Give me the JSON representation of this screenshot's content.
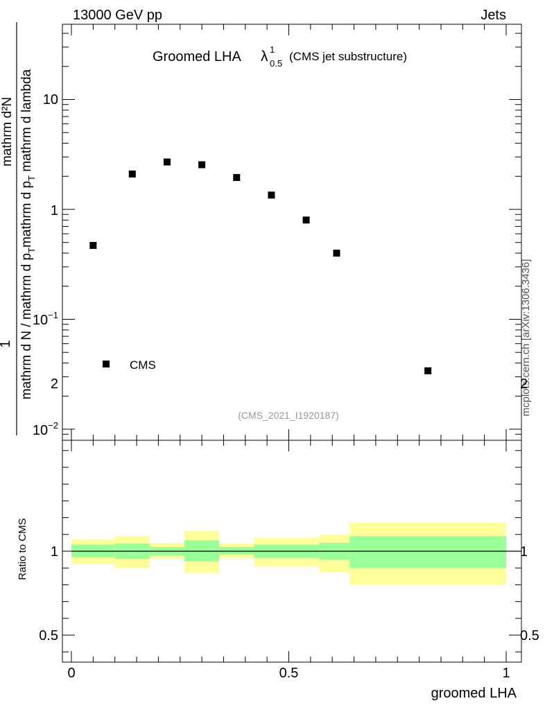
{
  "header": {
    "left": "13000 GeV pp",
    "right": "Jets"
  },
  "side_label": "mcplots.cern.ch [arXiv:1306.3436]",
  "watermark": "(CMS_2021_I1920187)",
  "title": {
    "main": "Groomed LHA",
    "symbol": "λ",
    "sup": "1",
    "sub": "0.5",
    "extra": "(CMS jet substructure)"
  },
  "legend": {
    "label": "CMS"
  },
  "colors": {
    "inner_band": "#99ff99",
    "outer_band": "#ffff99",
    "marker": "#000000"
  },
  "chart_data": [
    {
      "type": "scatter",
      "yscale": "log",
      "ylabel": "1 / mathrm d N / mathrm d p_T mathrm d p_T mathrm d^2N / mathrm d p_T mathrm d lambda",
      "ylim": [
        0.008,
        50
      ],
      "xlim": [
        -0.02,
        1.02
      ],
      "ytick_labels": [
        "10^-2",
        "10^-1",
        "1",
        "10"
      ],
      "series": [
        {
          "name": "CMS",
          "x": [
            0.05,
            0.14,
            0.22,
            0.3,
            0.38,
            0.46,
            0.54,
            0.61,
            0.82
          ],
          "y": [
            0.47,
            2.1,
            2.7,
            2.55,
            1.95,
            1.35,
            0.8,
            0.4,
            0.034
          ]
        }
      ]
    },
    {
      "type": "area",
      "ylabel": "Ratio to CMS",
      "xlabel": "groomed LHA",
      "ylim": [
        0.35,
        2.25
      ],
      "xlim": [
        -0.02,
        1.02
      ],
      "ytick_labels": [
        "0.5",
        "1",
        "2"
      ],
      "xtick_labels": [
        "0",
        "0.5",
        "1"
      ],
      "bins": [
        {
          "lo": 0.0,
          "hi": 0.1,
          "inner": [
            0.965,
            1.04
          ],
          "outer": [
            0.925,
            1.07
          ]
        },
        {
          "lo": 0.1,
          "hi": 0.18,
          "inner": [
            0.955,
            1.045
          ],
          "outer": [
            0.9,
            1.09
          ]
        },
        {
          "lo": 0.18,
          "hi": 0.26,
          "inner": [
            0.975,
            1.025
          ],
          "outer": [
            0.955,
            1.05
          ]
        },
        {
          "lo": 0.26,
          "hi": 0.34,
          "inner": [
            0.94,
            1.065
          ],
          "outer": [
            0.87,
            1.12
          ]
        },
        {
          "lo": 0.34,
          "hi": 0.42,
          "inner": [
            0.98,
            1.025
          ],
          "outer": [
            0.96,
            1.045
          ]
        },
        {
          "lo": 0.42,
          "hi": 0.5,
          "inner": [
            0.96,
            1.04
          ],
          "outer": [
            0.91,
            1.08
          ]
        },
        {
          "lo": 0.5,
          "hi": 0.57,
          "inner": [
            0.96,
            1.04
          ],
          "outer": [
            0.91,
            1.08
          ]
        },
        {
          "lo": 0.57,
          "hi": 0.64,
          "inner": [
            0.95,
            1.05
          ],
          "outer": [
            0.875,
            1.1
          ]
        },
        {
          "lo": 0.64,
          "hi": 1.0,
          "inner": [
            0.9,
            1.09
          ],
          "outer": [
            0.8,
            1.17
          ]
        }
      ],
      "reference_line": 1.0
    }
  ]
}
